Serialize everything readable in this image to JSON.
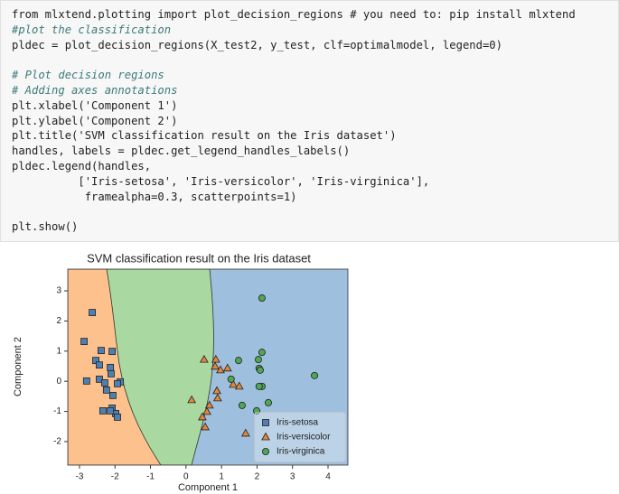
{
  "code": {
    "blocks": [
      [
        "from mlxtend.plotting import plot_decision_regions # you need to: pip install mlxtend",
        "#plot the classification",
        "pldec = plot_decision_regions(X_test2, y_test, clf=optimalmodel, legend=0)"
      ],
      [
        "# Plot decision regions",
        "# Adding axes annotations",
        "plt.xlabel('Component 1')",
        "plt.ylabel('Component 2')",
        "plt.title('SVM classification result on the Iris dataset')",
        "handles, labels = pldec.get_legend_handles_labels()",
        "pldec.legend(handles,",
        "          ['Iris-setosa', 'Iris-versicolor', 'Iris-virginica'],",
        "           framealpha=0.3, scatterpoints=1)"
      ],
      [
        "plt.show()"
      ]
    ]
  },
  "chart_data": {
    "type": "scatter",
    "title": "SVM classification result on the Iris dataset",
    "xlabel": "Component 1",
    "ylabel": "Component 2",
    "xlim": [
      -3.33,
      4.56
    ],
    "ylim": [
      -2.78,
      3.72
    ],
    "xticks": [
      -3,
      -2,
      -1,
      0,
      1,
      2,
      3,
      4
    ],
    "yticks": [
      -2,
      -1,
      0,
      1,
      2,
      3
    ],
    "legend": "lower right",
    "series": [
      {
        "name": "Iris-setosa",
        "color": "#4f7fb0",
        "marker": "s",
        "x": [
          -2.64,
          -2.87,
          -2.39,
          -2.08,
          -2.54,
          -2.44,
          -2.13,
          -2.11,
          -2.44,
          -2.8,
          -1.85,
          -2.29,
          -1.93,
          -2.24,
          -2.06,
          -2.34,
          -2.08,
          -1.98,
          -1.93,
          -2.13
        ],
        "values": [
          2.28,
          1.32,
          1.02,
          0.99,
          0.69,
          0.54,
          0.46,
          0.25,
          0.07,
          0.01,
          -0.02,
          -0.05,
          -0.08,
          -0.29,
          -0.47,
          -0.98,
          -0.89,
          -1.07,
          -1.19,
          -0.98
        ]
      },
      {
        "name": "Iris-versicolor",
        "color": "#e0873c",
        "marker": "^",
        "x": [
          0.51,
          0.84,
          0.82,
          1.17,
          0.97,
          1.33,
          1.5,
          0.87,
          0.89,
          0.16,
          0.66,
          0.59,
          0.46,
          0.54,
          1.68
        ],
        "values": [
          0.72,
          0.72,
          0.49,
          0.43,
          0.37,
          -0.11,
          -0.17,
          -0.32,
          -0.56,
          -0.62,
          -0.8,
          -1.01,
          -1.19,
          -1.52,
          -1.73
        ]
      },
      {
        "name": "Iris-virginica",
        "color": "#4fa655",
        "marker": "o",
        "x": [
          2.14,
          2.14,
          2.04,
          1.48,
          2.06,
          2.09,
          3.62,
          1.27,
          2.14,
          2.06,
          2.32,
          1.58,
          1.99
        ],
        "values": [
          2.76,
          0.96,
          0.72,
          0.69,
          0.43,
          0.37,
          0.19,
          0.07,
          -0.17,
          -0.17,
          -0.71,
          -0.8,
          -0.98
        ]
      }
    ]
  }
}
